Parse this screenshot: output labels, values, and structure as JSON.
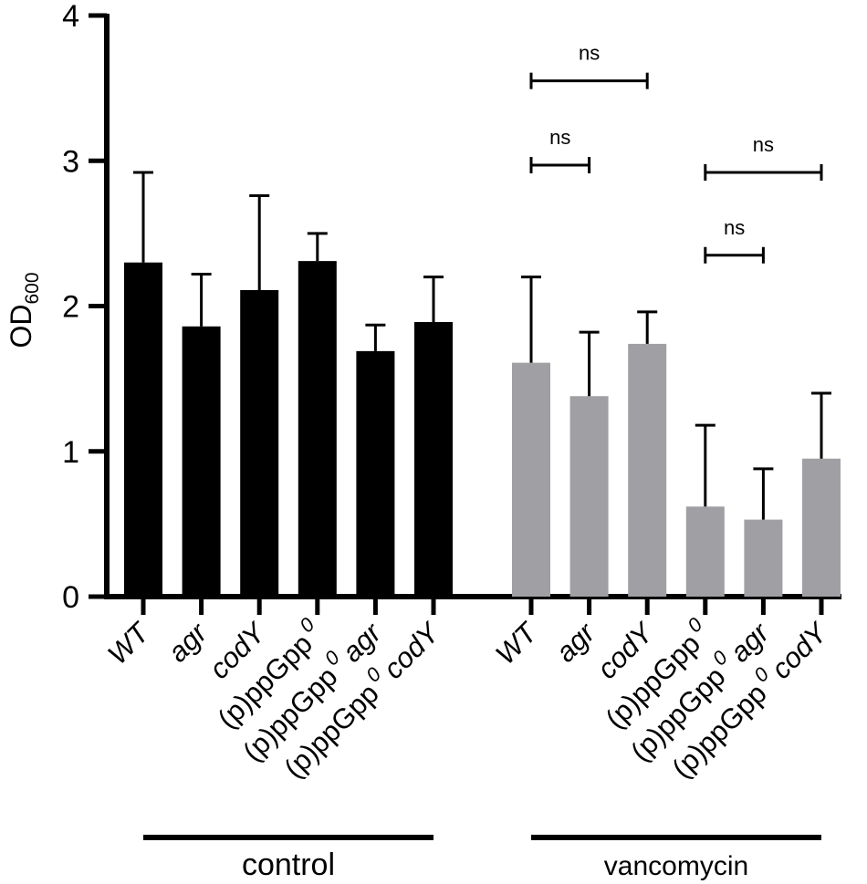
{
  "chart_data": {
    "type": "bar",
    "title": "",
    "xlabel": "",
    "ylabel": {
      "main": "OD",
      "sub": "600"
    },
    "ylim": [
      0,
      4
    ],
    "yticks": [
      "0",
      "1",
      "2",
      "3",
      "4"
    ],
    "colors": {
      "control": "#000000",
      "vancomycin": "#a0a0a4"
    },
    "groups": [
      {
        "name": "control",
        "color_key": "control",
        "bars": [
          {
            "label": "WT",
            "value": 2.3,
            "err": 0.62
          },
          {
            "label": "agr",
            "value": 1.86,
            "err": 0.36
          },
          {
            "label": "codY",
            "value": 2.11,
            "err": 0.65
          },
          {
            "label": "(p)ppGpp",
            "sup": "0",
            "value": 2.31,
            "err": 0.19
          },
          {
            "label": "(p)ppGpp",
            "sup": "0",
            "suffix": "agr",
            "value": 1.69,
            "err": 0.18
          },
          {
            "label": "(p)ppGpp",
            "sup": "0",
            "suffix": "codY",
            "value": 1.89,
            "err": 0.31
          }
        ]
      },
      {
        "name": "vancomycin",
        "color_key": "vancomycin",
        "bars": [
          {
            "label": "WT",
            "value": 1.61,
            "err": 0.59
          },
          {
            "label": "agr",
            "value": 1.38,
            "err": 0.44
          },
          {
            "label": "codY",
            "value": 1.74,
            "err": 0.22
          },
          {
            "label": "(p)ppGpp",
            "sup": "0",
            "value": 0.62,
            "err": 0.56
          },
          {
            "label": "(p)ppGpp",
            "sup": "0",
            "suffix": "agr",
            "value": 0.53,
            "err": 0.35
          },
          {
            "label": "(p)ppGpp",
            "sup": "0",
            "suffix": "codY",
            "value": 0.95,
            "err": 0.45
          }
        ]
      }
    ],
    "significance": [
      {
        "group": 1,
        "from": 0,
        "to": 2,
        "y": 3.55,
        "text": "ns"
      },
      {
        "group": 1,
        "from": 0,
        "to": 1,
        "y": 2.97,
        "text": "ns"
      },
      {
        "group": 1,
        "from": 3,
        "to": 5,
        "y": 2.92,
        "text": "ns"
      },
      {
        "group": 1,
        "from": 3,
        "to": 4,
        "y": 2.35,
        "text": "ns"
      }
    ]
  }
}
